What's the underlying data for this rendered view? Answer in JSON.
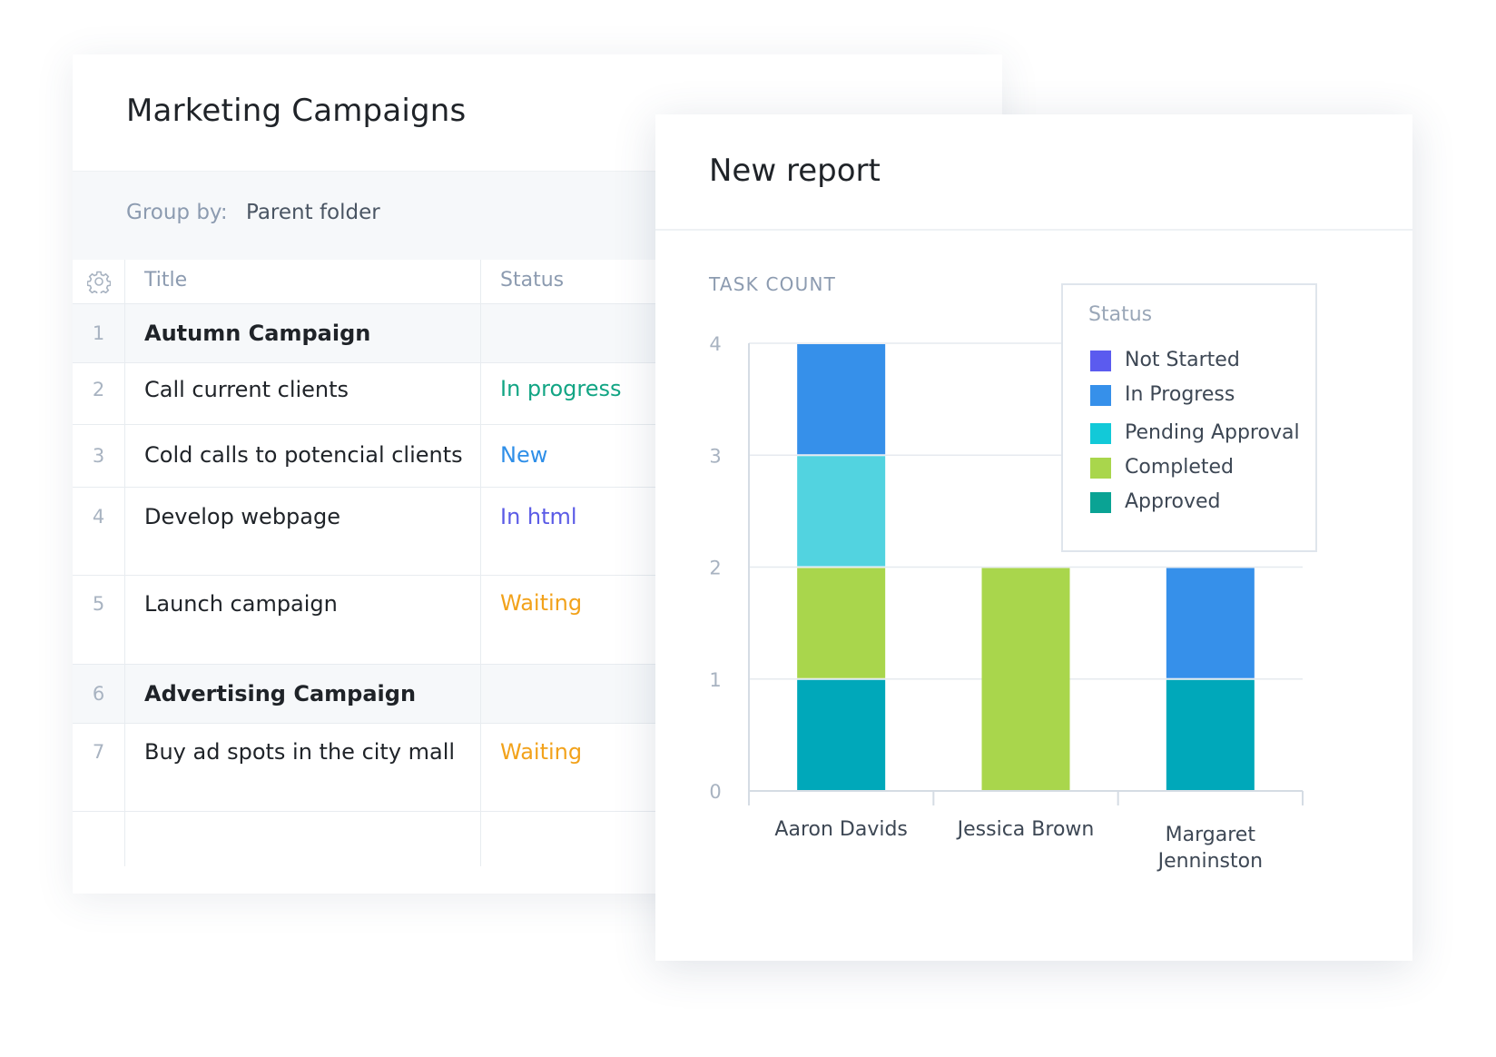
{
  "campaigns": {
    "title": "Marketing Campaigns",
    "group_by": {
      "label": "Group by:",
      "value": "Parent folder"
    },
    "columns": {
      "title": "Title",
      "status": "Status"
    },
    "rows": [
      {
        "num": "1",
        "title": "Autumn Campaign",
        "status": "",
        "group": true
      },
      {
        "num": "2",
        "title": "Call current clients",
        "status": "In progress",
        "status_color": "#12a584",
        "group": false
      },
      {
        "num": "3",
        "title": "Cold calls to potencial clients",
        "status": "New",
        "status_color": "#2f8fe8",
        "group": false
      },
      {
        "num": "4",
        "title": "Develop webpage",
        "status": "In html",
        "status_color": "#5b5be6",
        "group": false
      },
      {
        "num": "5",
        "title": "Launch campaign",
        "status": "Waiting",
        "status_color": "#f2a21b",
        "group": false
      },
      {
        "num": "6",
        "title": "Advertising Campaign",
        "status": "",
        "group": true
      },
      {
        "num": "7",
        "title": "Buy ad spots in the city mall",
        "status": "Waiting",
        "status_color": "#f2a21b",
        "group": false
      }
    ]
  },
  "report": {
    "title": "New report"
  },
  "chart_data": {
    "type": "bar",
    "stacked": true,
    "ylabel": "TASK COUNT",
    "ylim": [
      0,
      4
    ],
    "yticks": [
      "0",
      "1",
      "2",
      "3",
      "4"
    ],
    "categories": [
      [
        "Aaron Davids"
      ],
      [
        "Jessica Brown"
      ],
      [
        "Margaret",
        "Jenninston"
      ]
    ],
    "legend_title": "Status",
    "legend_position": "top-right",
    "grid": true,
    "series": [
      {
        "name": "Approved",
        "color": "#00a8ba",
        "legend_color": "#0aa394",
        "values": [
          1,
          0,
          1
        ]
      },
      {
        "name": "Completed",
        "color": "#a9d64c",
        "values": [
          1,
          2,
          0
        ]
      },
      {
        "name": "Pending Approval",
        "color": "#52d3e0",
        "legend_color": "#12c9d8",
        "values": [
          1,
          0,
          0
        ]
      },
      {
        "name": "In Progress",
        "color": "#3690ea",
        "values": [
          1,
          0,
          1
        ]
      },
      {
        "name": "Not Started",
        "color": "#5b5bef",
        "values": [
          0,
          0,
          0
        ]
      }
    ],
    "legend_order": [
      "Not Started",
      "In Progress",
      "Pending Approval",
      "Completed",
      "Approved"
    ]
  }
}
